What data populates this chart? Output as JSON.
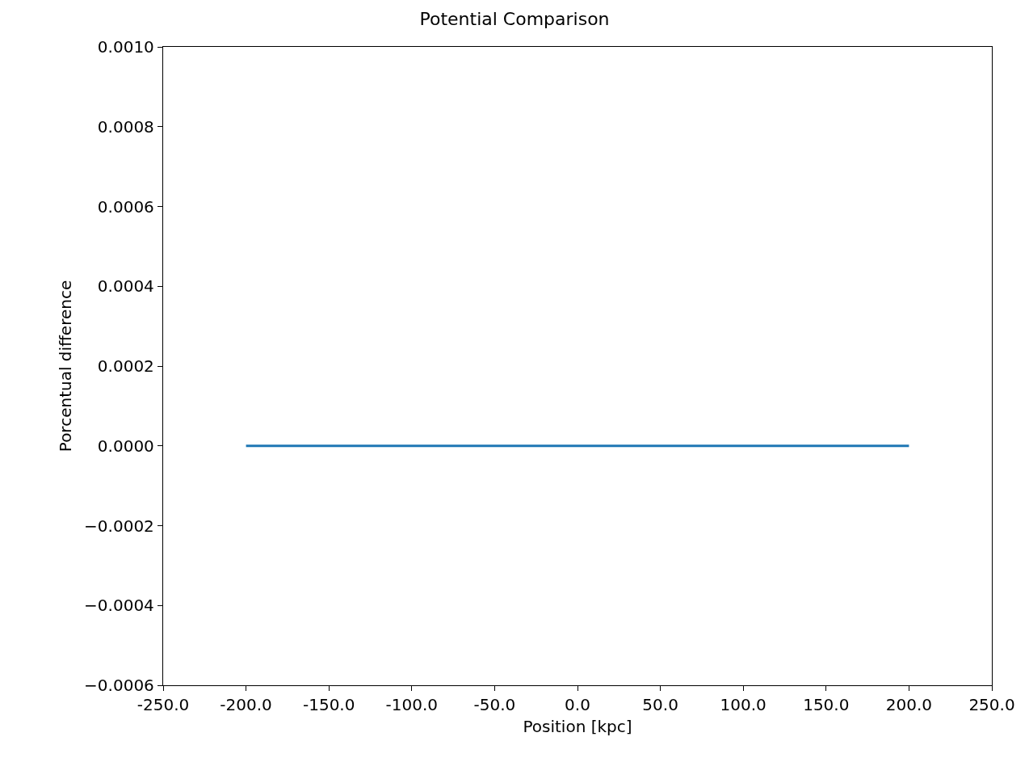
{
  "chart_data": {
    "type": "line",
    "title": "Potential Comparison",
    "xlabel": "Position [kpc]",
    "ylabel": "Porcentual difference",
    "x": [
      -200,
      200
    ],
    "series": [
      {
        "color": "#1f77b4",
        "values": [
          0,
          0
        ]
      }
    ],
    "xlim": [
      -250,
      250
    ],
    "xticks": [
      {
        "value": -250,
        "label": "-250.0"
      },
      {
        "value": -200,
        "label": "-200.0"
      },
      {
        "value": -150,
        "label": "-150.0"
      },
      {
        "value": -100,
        "label": "-100.0"
      },
      {
        "value": -50,
        "label": "-50.0"
      },
      {
        "value": 0,
        "label": "0.0"
      },
      {
        "value": 50,
        "label": "50.0"
      },
      {
        "value": 100,
        "label": "100.0"
      },
      {
        "value": 150,
        "label": "150.0"
      },
      {
        "value": 200,
        "label": "200.0"
      },
      {
        "value": 250,
        "label": "250.0"
      }
    ],
    "ylim": [
      -0.0006,
      0.001
    ],
    "yticks": [
      {
        "value": -0.0006,
        "label": "−0.0006"
      },
      {
        "value": -0.0004,
        "label": "−0.0004"
      },
      {
        "value": -0.0002,
        "label": "−0.0002"
      },
      {
        "value": 0,
        "label": "0.0000"
      },
      {
        "value": 0.0002,
        "label": "0.0002"
      },
      {
        "value": 0.0004,
        "label": "0.0004"
      },
      {
        "value": 0.0006,
        "label": "0.0006"
      },
      {
        "value": 0.0008,
        "label": "0.0008"
      },
      {
        "value": 0.001,
        "label": "0.0010"
      }
    ],
    "marker": "none",
    "line_style": "solid"
  }
}
